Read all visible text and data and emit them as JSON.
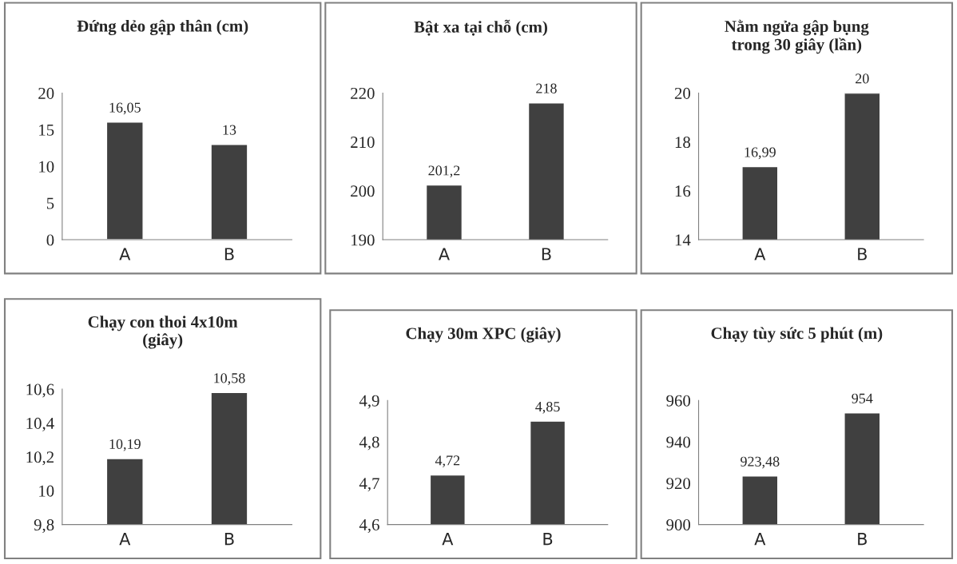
{
  "chart_data": [
    {
      "type": "bar",
      "title": "Đứng dẻo gập thân (cm)",
      "categories": [
        "A",
        "B"
      ],
      "values": [
        16.05,
        13
      ],
      "value_labels": [
        "16,05",
        "13"
      ],
      "color": "#404040",
      "ylim": [
        0,
        20
      ],
      "yticks": [
        0,
        5,
        10,
        15,
        20
      ]
    },
    {
      "type": "bar",
      "title": "Bật xa tại chỗ (cm)",
      "categories": [
        "A",
        "B"
      ],
      "values": [
        201.2,
        218
      ],
      "value_labels": [
        "201,2",
        "218"
      ],
      "color": "#404040",
      "ylim": [
        190,
        220
      ],
      "yticks": [
        190,
        200,
        210,
        220
      ]
    },
    {
      "type": "bar",
      "title": "Nằm ngửa gập bụng\ntrong 30 giây (lần)",
      "categories": [
        "A",
        "B"
      ],
      "values": [
        16.99,
        20
      ],
      "value_labels": [
        "16,99",
        "20"
      ],
      "color": "#404040",
      "ylim": [
        14,
        20
      ],
      "yticks": [
        14,
        16,
        18,
        20
      ]
    },
    {
      "type": "bar",
      "title": "Chạy con thoi 4x10m\n(giây)",
      "categories": [
        "A",
        "B"
      ],
      "values": [
        10.19,
        10.58
      ],
      "value_labels": [
        "10,19",
        "10,58"
      ],
      "color": "#404040",
      "ylim": [
        9.8,
        10.6
      ],
      "yticks": [
        {
          "value": 9.8,
          "label": "9,8"
        },
        10,
        {
          "value": 10.2,
          "label": "10,2"
        },
        {
          "value": 10.4,
          "label": "10,4"
        },
        {
          "value": 10.6,
          "label": "10,6"
        }
      ]
    },
    {
      "type": "bar",
      "title": "Chạy 30m XPC (giây)",
      "categories": [
        "A",
        "B"
      ],
      "values": [
        4.72,
        4.85
      ],
      "value_labels": [
        "4,72",
        "4,85"
      ],
      "color": "#404040",
      "ylim": [
        4.6,
        4.9
      ],
      "yticks": [
        {
          "value": 4.6,
          "label": "4,6"
        },
        {
          "value": 4.7,
          "label": "4,7"
        },
        {
          "value": 4.8,
          "label": "4,8"
        },
        {
          "value": 4.9,
          "label": "4,9"
        }
      ]
    },
    {
      "type": "bar",
      "title": "Chạy tùy sức 5 phút (m)",
      "categories": [
        "A",
        "B"
      ],
      "values": [
        923.48,
        954
      ],
      "value_labels": [
        "923,48",
        "954"
      ],
      "color": "#404040",
      "ylim": [
        900,
        960
      ],
      "yticks": [
        900,
        920,
        940,
        960
      ]
    }
  ]
}
